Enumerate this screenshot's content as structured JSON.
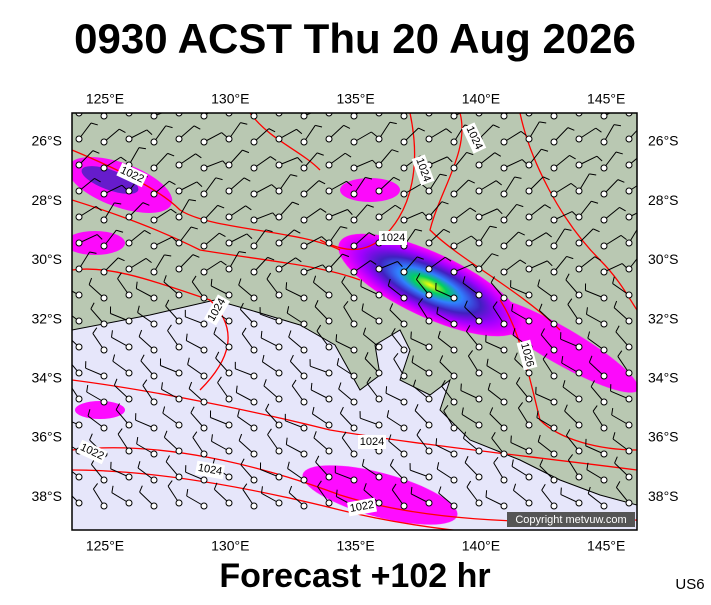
{
  "header": {
    "title": "0930 ACST Thu 20 Aug 2026"
  },
  "footer": {
    "caption": "Forecast +102 hr",
    "code": "US6",
    "copyright": "Copyright metvuw.com"
  },
  "map": {
    "lon_labels": [
      "125°E",
      "130°E",
      "135°E",
      "140°E",
      "145°E"
    ],
    "lat_labels": [
      "26°S",
      "28°S",
      "30°S",
      "32°S",
      "34°S",
      "36°S",
      "38°S"
    ],
    "isobar_labels": [
      "1022",
      "1024",
      "1024",
      "1024",
      "1024",
      "1024",
      "1026",
      "1024",
      "1022",
      "1022"
    ]
  }
}
